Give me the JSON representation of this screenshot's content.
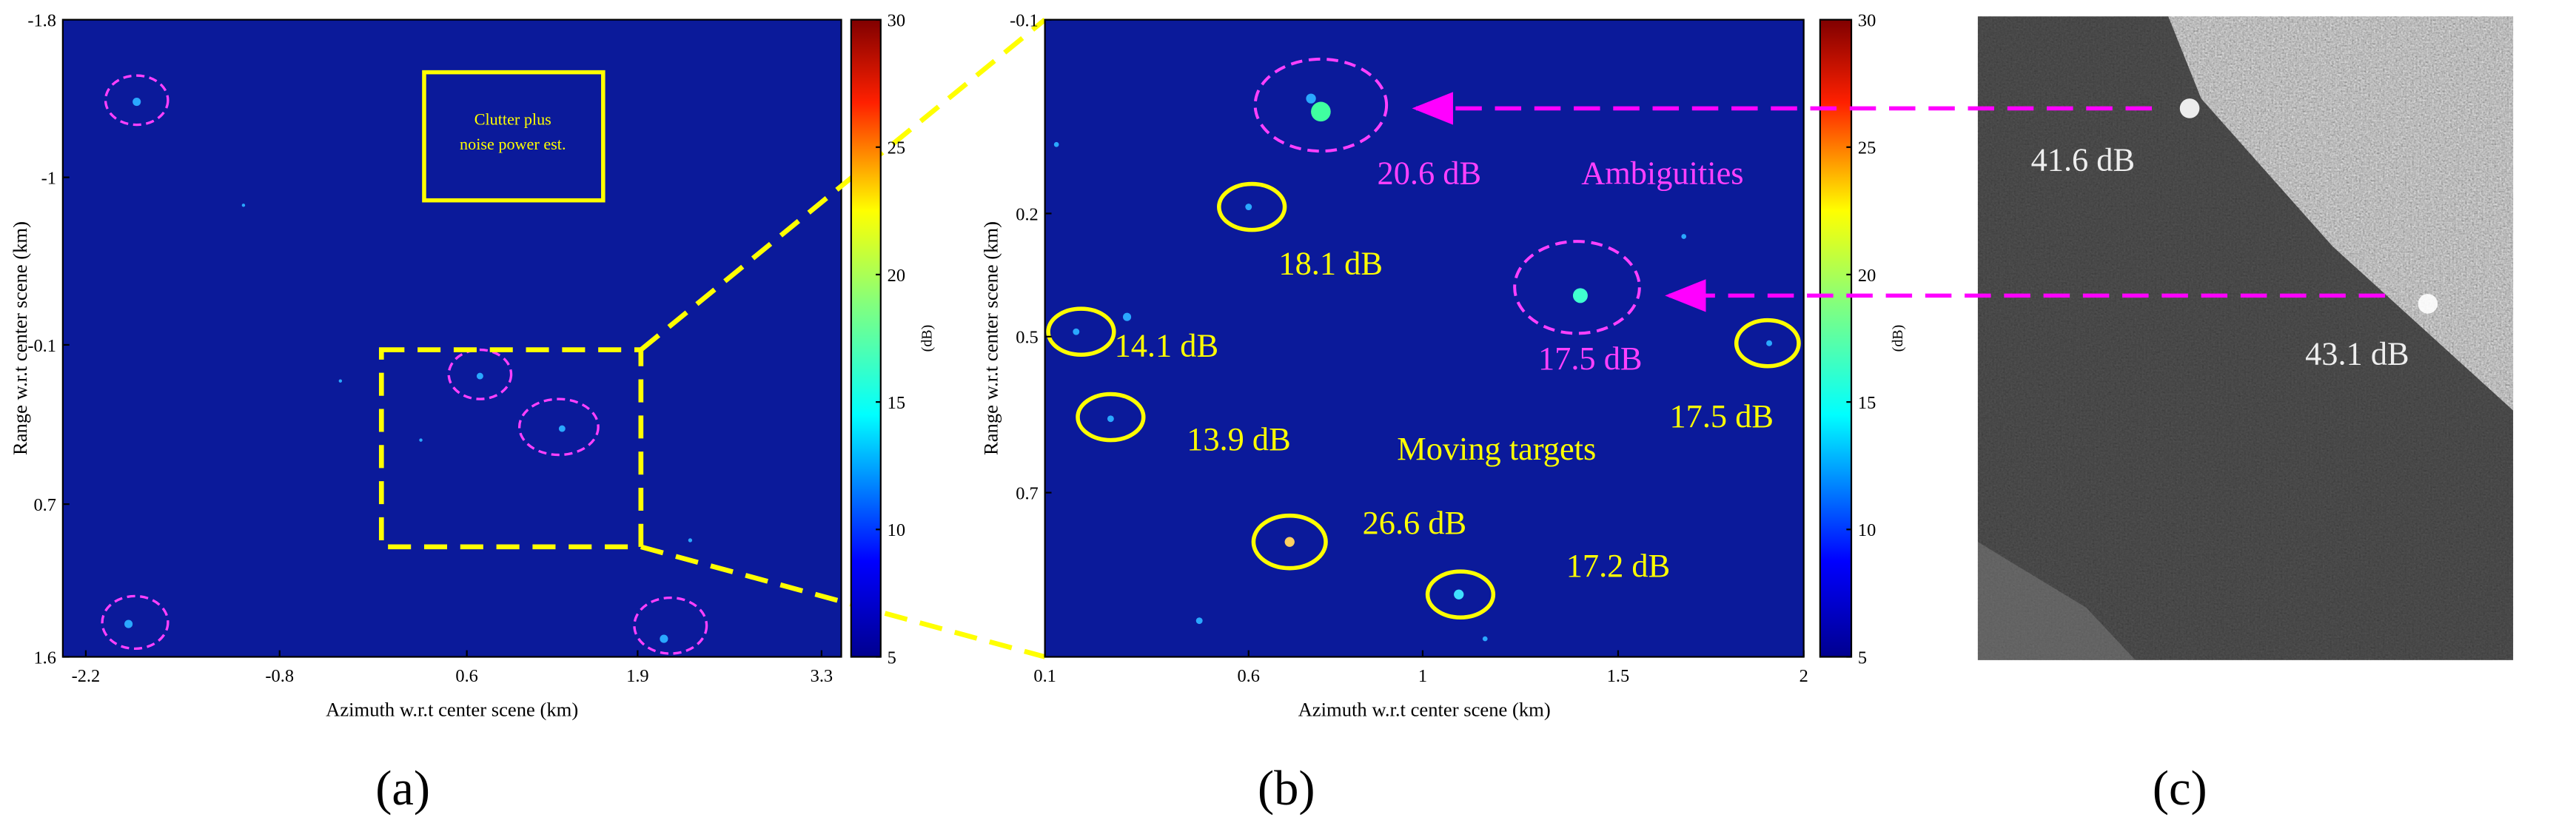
{
  "panels": [
    {
      "label": "(a)",
      "x_label": "Azimuth w.r.t center scene (km)",
      "y_label": "Range w.r.t center scene (km)",
      "xticks": [
        -2.2,
        -0.8,
        0.6,
        1.9,
        3.3
      ],
      "yticks": [
        -1.8,
        -1,
        -0.1,
        0.7,
        1.6
      ],
      "colorbar": {
        "label": "(dB)",
        "ticks": [
          30,
          25,
          20,
          15,
          10,
          5
        ]
      },
      "annotations": [
        "Clutter plus",
        "noise power est."
      ]
    },
    {
      "label": "(b)",
      "x_label": "Azimuth w.r.t center scene (km)",
      "y_label": "Range w.r.t center scene (km)",
      "xticks": [
        0.1,
        0.6,
        1,
        1.5,
        2
      ],
      "yticks": [
        -0.1,
        0.2,
        0.5,
        0.7
      ],
      "colorbar": {
        "label": "(dB)",
        "ticks": [
          30,
          25,
          20,
          15,
          10,
          5
        ]
      },
      "annotations": [
        "20.6 dB",
        "Ambiguities",
        "18.1 dB",
        "14.1 dB",
        "17.5 dB",
        "17.5 dB",
        "13.9 dB",
        "Moving targets",
        "26.6 dB",
        "17.2 dB"
      ]
    },
    {
      "label": "(c)",
      "annotations": [
        "41.6 dB",
        "43.1 dB"
      ]
    }
  ]
}
